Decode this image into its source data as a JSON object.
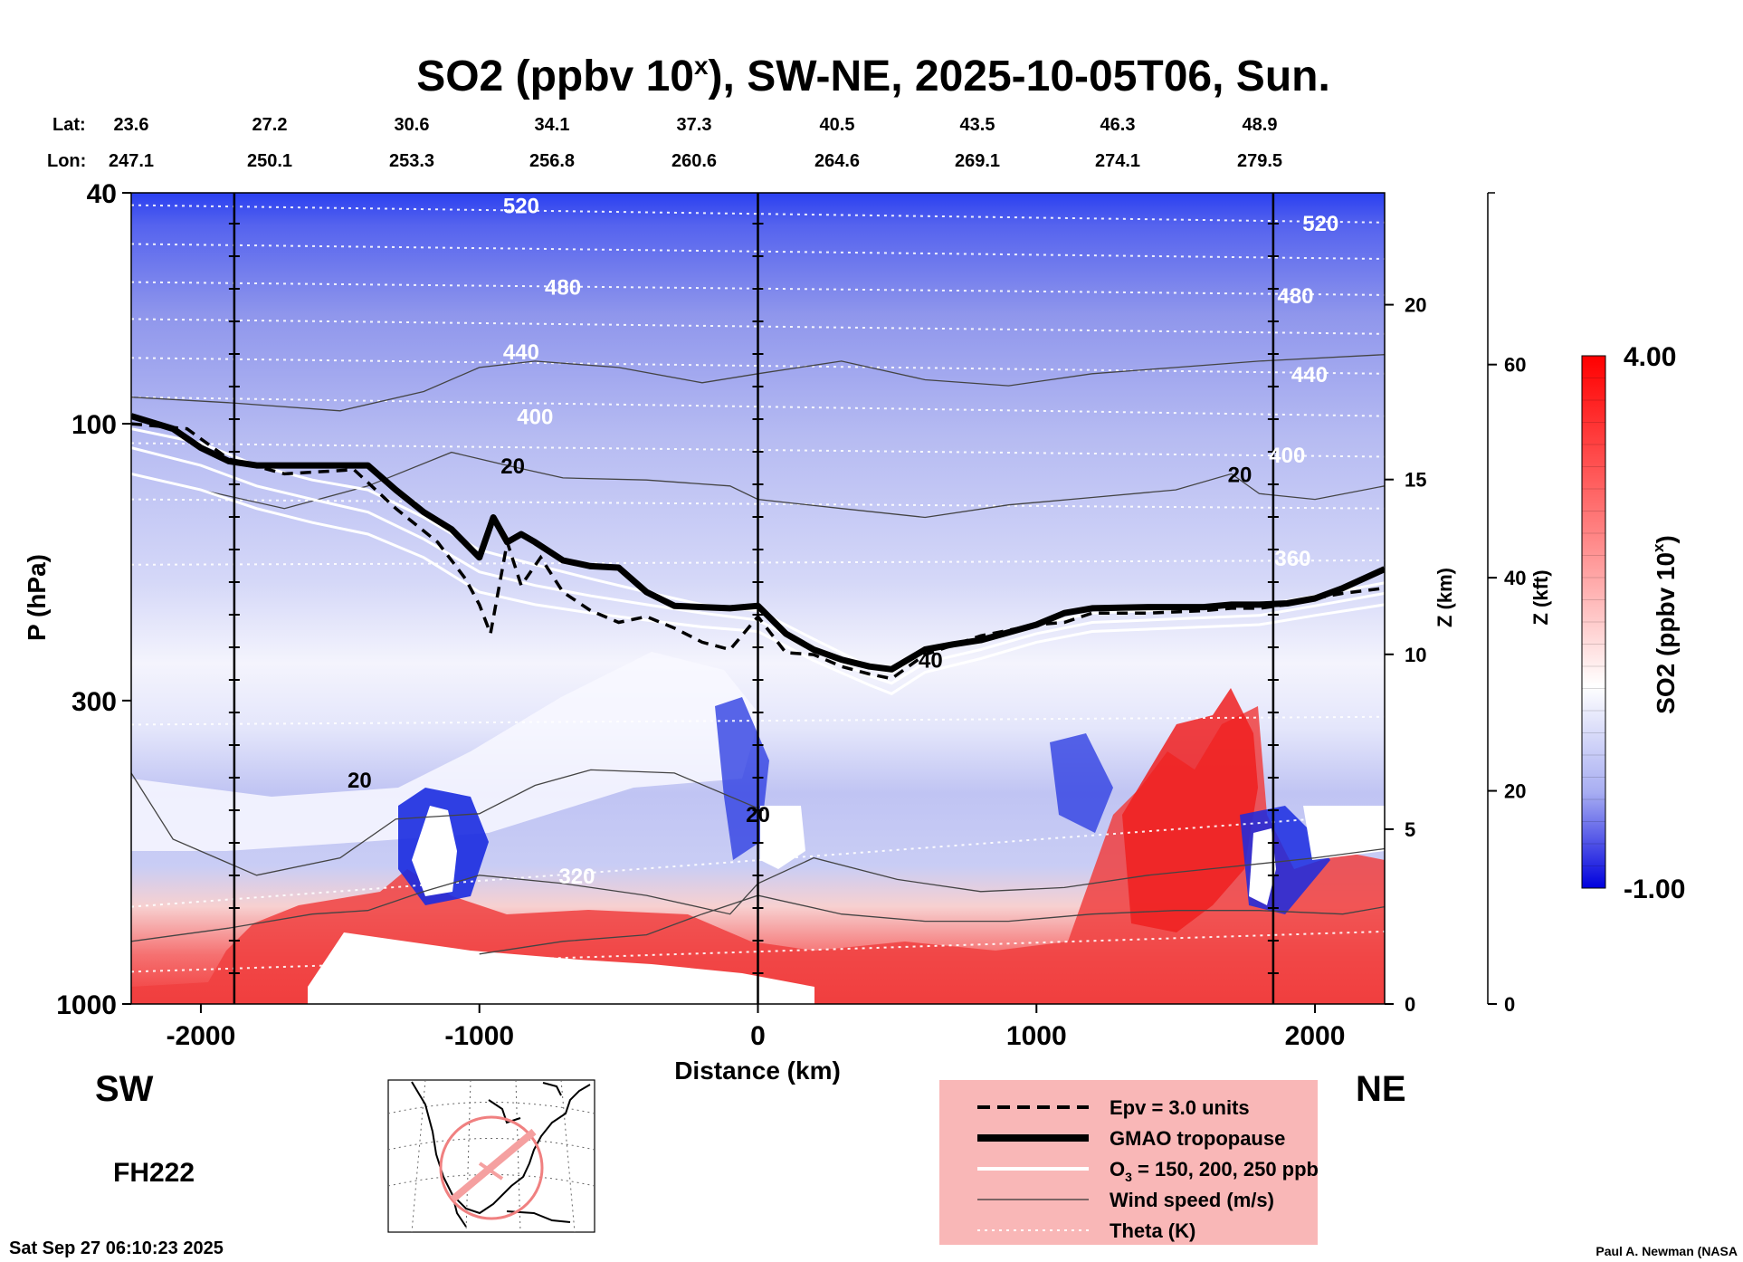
{
  "chart_data": {
    "type": "heatmap",
    "title": "SO2 (ppbv 10",
    "title_superscript": "x",
    "title_suffix": "), SW-NE, 2025-10-05T06, Sun.",
    "xlabel": "Distance (km)",
    "ylabel": "P (hPa)",
    "ylabel2": "Z (km)",
    "ylabel3": "Z (kft)",
    "colorbar_label": "SO2 (ppbv 10",
    "colorbar_label_superscript": "x",
    "colorbar_label_suffix": ")",
    "colorbar_range": [
      -1.0,
      4.0
    ],
    "colorbar_max_label": "4.00",
    "colorbar_min_label": "-1.00",
    "xlim": [
      -2250,
      2250
    ],
    "ylim": [
      1000,
      40
    ],
    "x_ticks": [
      -2000,
      -1000,
      0,
      1000,
      2000
    ],
    "y_ticks": [
      40,
      100,
      300,
      1000
    ],
    "z_km_ticks": [
      0,
      5,
      10,
      15,
      20
    ],
    "z_kft_ticks": [
      0,
      20,
      40,
      60
    ],
    "left_end": "SW",
    "right_end": "NE",
    "lat_label": "Lat:",
    "lon_label": "Lon:",
    "lat": [
      "23.6",
      "27.2",
      "30.6",
      "34.1",
      "37.3",
      "40.5",
      "43.5",
      "46.3",
      "48.9"
    ],
    "lon": [
      "247.1",
      "250.1",
      "253.3",
      "256.8",
      "260.6",
      "264.6",
      "269.1",
      "274.1",
      "279.5"
    ],
    "theta_labels": [
      {
        "text": "520",
        "x": -850,
        "p": 42
      },
      {
        "text": "480",
        "x": -700,
        "p": 58
      },
      {
        "text": "440",
        "x": -850,
        "p": 75
      },
      {
        "text": "400",
        "x": -800,
        "p": 97
      },
      {
        "text": "320",
        "x": -650,
        "p": 600
      },
      {
        "text": "520",
        "x": 2020,
        "p": 45
      },
      {
        "text": "480",
        "x": 1930,
        "p": 60
      },
      {
        "text": "440",
        "x": 1980,
        "p": 82
      },
      {
        "text": "400",
        "x": 1900,
        "p": 113
      },
      {
        "text": "360",
        "x": 1920,
        "p": 170
      }
    ],
    "wind_labels": [
      {
        "text": "20",
        "x": -1430,
        "p": 410
      },
      {
        "text": "20",
        "x": -880,
        "p": 118
      },
      {
        "text": "20",
        "x": 1730,
        "p": 122
      },
      {
        "text": "40",
        "x": 620,
        "p": 255
      },
      {
        "text": "20",
        "x": 0,
        "p": 470
      }
    ],
    "epv_line": {
      "x": [
        -2250,
        -2050,
        -1900,
        -1700,
        -1450,
        -1300,
        -1150,
        -1050,
        -1000,
        -960,
        -900,
        -850,
        -780,
        -700,
        -600,
        -500,
        -400,
        -300,
        -200,
        -100,
        0,
        100,
        200,
        300,
        400,
        480,
        600,
        800,
        1000,
        1100,
        1200,
        1400,
        1600,
        1700,
        1800,
        1900,
        2000,
        2100,
        2250
      ],
      "p": [
        100,
        102,
        115,
        122,
        120,
        140,
        160,
        185,
        205,
        230,
        160,
        190,
        170,
        195,
        210,
        220,
        215,
        225,
        238,
        245,
        215,
        248,
        250,
        262,
        270,
        275,
        250,
        232,
        222,
        220,
        212,
        212,
        210,
        208,
        208,
        205,
        200,
        196,
        192
      ]
    },
    "tropopause_line": {
      "x": [
        -2250,
        -2100,
        -2000,
        -1900,
        -1800,
        -1600,
        -1400,
        -1300,
        -1200,
        -1100,
        -1000,
        -950,
        -900,
        -850,
        -800,
        -700,
        -600,
        -500,
        -400,
        -300,
        -200,
        -100,
        0,
        100,
        200,
        300,
        400,
        480,
        600,
        700,
        800,
        1000,
        1100,
        1200,
        1400,
        1600,
        1700,
        1800,
        1900,
        2000,
        2100,
        2250
      ],
      "p": [
        97,
        102,
        110,
        116,
        118,
        118,
        118,
        130,
        142,
        152,
        170,
        145,
        160,
        155,
        160,
        172,
        176,
        177,
        195,
        206,
        207,
        208,
        206,
        230,
        245,
        255,
        262,
        265,
        245,
        240,
        236,
        222,
        212,
        208,
        207,
        207,
        205,
        205,
        204,
        200,
        192,
        178
      ]
    },
    "o3_lines": [
      {
        "x": [
          -2250,
          -2000,
          -1800,
          -1600,
          -1400,
          -1200,
          -1000,
          -800,
          -600,
          -400,
          -200,
          0,
          200,
          400,
          480,
          600,
          800,
          1000,
          1200,
          1400,
          1600,
          1800,
          2000,
          2250
        ],
        "p": [
          102,
          108,
          118,
          125,
          130,
          145,
          165,
          175,
          185,
          195,
          205,
          210,
          235,
          262,
          268,
          248,
          235,
          222,
          212,
          210,
          208,
          206,
          198,
          188
        ]
      },
      {
        "x": [
          -2250,
          -2000,
          -1800,
          -1600,
          -1400,
          -1200,
          -1000,
          -800,
          -600,
          -400,
          -200,
          0,
          200,
          400,
          480,
          600,
          800,
          1000,
          1200,
          1400,
          1600,
          1800,
          2000,
          2250
        ],
        "p": [
          110,
          118,
          128,
          135,
          142,
          158,
          180,
          190,
          198,
          205,
          212,
          218,
          245,
          272,
          280,
          258,
          245,
          230,
          220,
          218,
          216,
          214,
          206,
          196
        ]
      },
      {
        "x": [
          -2250,
          -2000,
          -1800,
          -1600,
          -1400,
          -1200,
          -1000,
          -800,
          -600,
          -400,
          -200,
          0,
          200,
          400,
          480,
          600,
          800,
          1000,
          1200,
          1400,
          1600,
          1800,
          2000,
          2250
        ],
        "p": [
          122,
          130,
          140,
          148,
          155,
          170,
          195,
          205,
          212,
          218,
          224,
          228,
          256,
          282,
          292,
          268,
          254,
          238,
          228,
          226,
          224,
          222,
          214,
          205
        ]
      }
    ],
    "wind_lines": [
      {
        "x": [
          -2250,
          -1900,
          -1500,
          -1200,
          -1000,
          -800,
          -500,
          -200,
          0,
          300,
          600,
          900,
          1200,
          1500,
          1800,
          2250
        ],
        "p": [
          90,
          92,
          95,
          88,
          80,
          78,
          80,
          85,
          82,
          78,
          84,
          86,
          82,
          80,
          78,
          76
        ]
      },
      {
        "x": [
          -2250,
          -2000,
          -1700,
          -1400,
          -1100,
          -900,
          -700,
          -400,
          -100,
          0,
          300,
          600,
          900,
          1200,
          1500,
          1700,
          1800,
          2000,
          2250
        ],
        "p": [
          122,
          130,
          140,
          128,
          112,
          118,
          124,
          125,
          128,
          135,
          140,
          145,
          138,
          134,
          130,
          122,
          132,
          135,
          128
        ]
      },
      {
        "x": [
          -2250,
          -2100,
          -1800,
          -1500,
          -1300,
          -1000,
          -800,
          -600,
          -300,
          0
        ],
        "p": [
          400,
          520,
          600,
          560,
          480,
          470,
          420,
          395,
          400,
          460
        ]
      },
      {
        "x": [
          -2250,
          -1900,
          -1600,
          -1400,
          -1200,
          -1000,
          -700,
          -400,
          -100,
          0,
          200,
          500,
          800,
          1100,
          1400,
          1700,
          2000,
          2250
        ],
        "p": [
          780,
          740,
          700,
          690,
          640,
          600,
          620,
          650,
          700,
          620,
          560,
          610,
          640,
          630,
          600,
          580,
          560,
          540
        ]
      },
      {
        "x": [
          -1000,
          -700,
          -400,
          -200,
          0,
          300,
          600,
          900,
          1200,
          1500,
          1800,
          2100,
          2250
        ],
        "p": [
          820,
          780,
          760,
          700,
          650,
          700,
          720,
          720,
          700,
          690,
          690,
          700,
          680
        ]
      }
    ],
    "theta_lines": [
      {
        "x": [
          -2250,
          2250
        ],
        "p": [
          42,
          45
        ]
      },
      {
        "x": [
          -2250,
          2250
        ],
        "p": [
          49,
          52
        ]
      },
      {
        "x": [
          -2250,
          2250
        ],
        "p": [
          57,
          60
        ]
      },
      {
        "x": [
          -2250,
          2250
        ],
        "p": [
          66,
          70
        ]
      },
      {
        "x": [
          -2250,
          2250
        ],
        "p": [
          77,
          82
        ]
      },
      {
        "x": [
          -2250,
          2250
        ],
        "p": [
          90,
          97
        ]
      },
      {
        "x": [
          -2250,
          2250
        ],
        "p": [
          108,
          114
        ]
      },
      {
        "x": [
          -2250,
          2250
        ],
        "p": [
          135,
          140
        ]
      },
      {
        "x": [
          -2250,
          2250
        ],
        "p": [
          175,
          172
        ]
      },
      {
        "x": [
          -2250,
          2250
        ],
        "p": [
          330,
          320
        ]
      },
      {
        "x": [
          -2250,
          2250
        ],
        "p": [
          680,
          470
        ]
      },
      {
        "x": [
          -2250,
          2250
        ],
        "p": [
          880,
          750
        ]
      }
    ],
    "vertical_lines_x": [
      -1880,
      0,
      1850
    ]
  },
  "legend": {
    "items": [
      {
        "label": "Epv = 3.0 units",
        "style": "dashed"
      },
      {
        "label": "GMAO tropopause",
        "style": "thick"
      },
      {
        "label": "O",
        "label_sub": "3",
        "label_rest": " = 150, 200, 250 ppb",
        "style": "white"
      },
      {
        "label": "Wind speed (m/s)",
        "style": "thin"
      },
      {
        "label": "Theta (K)",
        "style": "dotted"
      }
    ],
    "background": "#f9b7b7"
  },
  "forecast_hour": "FH222",
  "timestamp": "Sat Sep 27 06:10:23 2025",
  "credit": "Paul A. Newman (NASA",
  "colors": {
    "so2_high": "#ff0000",
    "so2_low": "#0000ee",
    "so2_mid": "#ffffff",
    "map_circle": "#f08080"
  }
}
